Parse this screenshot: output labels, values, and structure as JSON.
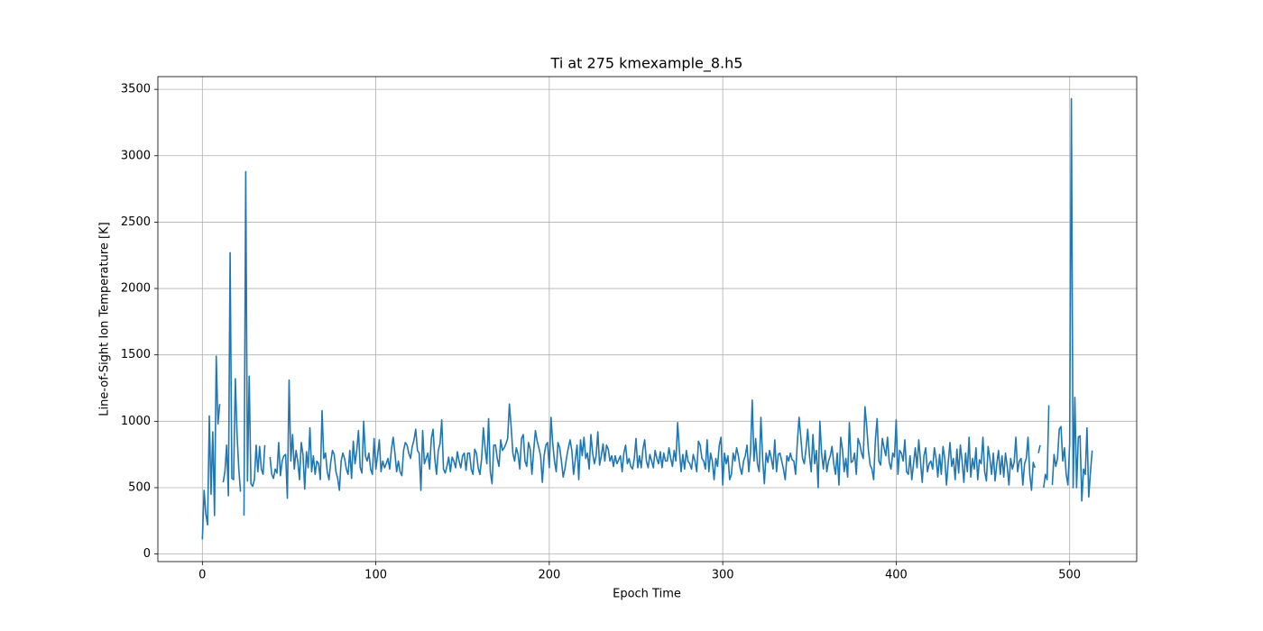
{
  "chart_data": {
    "type": "line",
    "title": "Ti at 275 kmexample_8.h5",
    "x_label": "Epoch Time",
    "y_label": "Line-of-Sight Ion Temperature [K]",
    "color": "#1f77b4",
    "grid": true,
    "xlim": [
      -25.65,
      538.65
    ],
    "ylim": [
      -57,
      3596
    ],
    "xticks": [
      0,
      100,
      200,
      300,
      400,
      500
    ],
    "yticks": [
      0,
      500,
      1000,
      1500,
      2000,
      2500,
      3000,
      3500
    ],
    "x": [
      0,
      1,
      2,
      3,
      4,
      5,
      6,
      7,
      8,
      9,
      10,
      11,
      12,
      13,
      14,
      15,
      16,
      17,
      18,
      19,
      20,
      21,
      22,
      23,
      24,
      25,
      26,
      27,
      28,
      29,
      30,
      31,
      32,
      33,
      34,
      35,
      36,
      37,
      38,
      39,
      40,
      41,
      42,
      43,
      44,
      45,
      46,
      47,
      48,
      49,
      50,
      51,
      52,
      53,
      54,
      55,
      56,
      57,
      58,
      59,
      60,
      61,
      62,
      63,
      64,
      65,
      66,
      67,
      68,
      69,
      70,
      71,
      72,
      73,
      74,
      75,
      76,
      77,
      78,
      79,
      80,
      81,
      82,
      83,
      84,
      85,
      86,
      87,
      88,
      89,
      90,
      91,
      92,
      93,
      94,
      95,
      96,
      97,
      98,
      99,
      100,
      101,
      102,
      103,
      104,
      105,
      106,
      107,
      108,
      109,
      110,
      111,
      112,
      113,
      114,
      115,
      116,
      117,
      118,
      119,
      120,
      121,
      122,
      123,
      124,
      125,
      126,
      127,
      128,
      129,
      130,
      131,
      132,
      133,
      134,
      135,
      136,
      137,
      138,
      139,
      140,
      141,
      142,
      143,
      144,
      145,
      146,
      147,
      148,
      149,
      150,
      151,
      152,
      153,
      154,
      155,
      156,
      157,
      158,
      159,
      160,
      161,
      162,
      163,
      164,
      165,
      166,
      167,
      168,
      169,
      170,
      171,
      172,
      173,
      174,
      175,
      176,
      177,
      178,
      179,
      180,
      181,
      182,
      183,
      184,
      185,
      186,
      187,
      188,
      189,
      190,
      191,
      192,
      193,
      194,
      195,
      196,
      197,
      198,
      199,
      200,
      201,
      202,
      203,
      204,
      205,
      206,
      207,
      208,
      209,
      210,
      211,
      212,
      213,
      214,
      215,
      216,
      217,
      218,
      219,
      220,
      221,
      222,
      223,
      224,
      225,
      226,
      227,
      228,
      229,
      230,
      231,
      232,
      233,
      234,
      235,
      236,
      237,
      238,
      239,
      240,
      241,
      242,
      243,
      244,
      245,
      246,
      247,
      248,
      249,
      250,
      251,
      252,
      253,
      254,
      255,
      256,
      257,
      258,
      259,
      260,
      261,
      262,
      263,
      264,
      265,
      266,
      267,
      268,
      269,
      270,
      271,
      272,
      273,
      274,
      275,
      276,
      277,
      278,
      279,
      280,
      281,
      282,
      283,
      284,
      285,
      286,
      287,
      288,
      289,
      290,
      291,
      292,
      293,
      294,
      295,
      296,
      297,
      298,
      299,
      300,
      301,
      302,
      303,
      304,
      305,
      306,
      307,
      308,
      309,
      310,
      311,
      312,
      313,
      314,
      315,
      316,
      317,
      318,
      319,
      320,
      321,
      322,
      323,
      324,
      325,
      326,
      327,
      328,
      329,
      330,
      331,
      332,
      333,
      334,
      335,
      336,
      337,
      338,
      339,
      340,
      341,
      342,
      343,
      344,
      345,
      346,
      347,
      348,
      349,
      350,
      351,
      352,
      353,
      354,
      355,
      356,
      357,
      358,
      359,
      360,
      361,
      362,
      363,
      364,
      365,
      366,
      367,
      368,
      369,
      370,
      371,
      372,
      373,
      374,
      375,
      376,
      377,
      378,
      379,
      380,
      381,
      382,
      383,
      384,
      385,
      386,
      387,
      388,
      389,
      390,
      391,
      392,
      393,
      394,
      395,
      396,
      397,
      398,
      399,
      400,
      401,
      402,
      403,
      404,
      405,
      406,
      407,
      408,
      409,
      410,
      411,
      412,
      413,
      414,
      415,
      416,
      417,
      418,
      419,
      420,
      421,
      422,
      423,
      424,
      425,
      426,
      427,
      428,
      429,
      430,
      431,
      432,
      433,
      434,
      435,
      436,
      437,
      438,
      439,
      440,
      441,
      442,
      443,
      444,
      445,
      446,
      447,
      448,
      449,
      450,
      451,
      452,
      453,
      454,
      455,
      456,
      457,
      458,
      459,
      460,
      461,
      462,
      463,
      464,
      465,
      466,
      467,
      468,
      469,
      470,
      471,
      472,
      473,
      474,
      475,
      476,
      477,
      478,
      479,
      480,
      481,
      482,
      483,
      484,
      485,
      486,
      487,
      488,
      489,
      490,
      491,
      492,
      493,
      494,
      495,
      496,
      497,
      498,
      499,
      500,
      501,
      502,
      503,
      504,
      505,
      506,
      507,
      508,
      509,
      510,
      511,
      512,
      513
    ],
    "values": [
      110,
      480,
      300,
      220,
      1040,
      450,
      920,
      290,
      1490,
      980,
      1130,
      null,
      540,
      620,
      820,
      440,
      2270,
      570,
      560,
      1320,
      900,
      640,
      470,
      null,
      290,
      2880,
      550,
      1340,
      530,
      510,
      560,
      820,
      620,
      810,
      640,
      600,
      820,
      null,
      null,
      730,
      600,
      570,
      640,
      610,
      840,
      590,
      700,
      740,
      750,
      420,
      1310,
      700,
      900,
      640,
      780,
      700,
      560,
      840,
      750,
      490,
      770,
      650,
      950,
      620,
      740,
      600,
      700,
      680,
      560,
      1080,
      720,
      760,
      620,
      560,
      690,
      780,
      750,
      620,
      570,
      480,
      700,
      760,
      720,
      640,
      600,
      780,
      570,
      850,
      680,
      780,
      930,
      650,
      610,
      1000,
      740,
      700,
      760,
      640,
      600,
      870,
      640,
      740,
      860,
      620,
      700,
      650,
      680,
      720,
      640,
      790,
      880,
      760,
      620,
      700,
      620,
      590,
      780,
      840,
      820,
      760,
      720,
      810,
      860,
      940,
      780,
      760,
      480,
      930,
      680,
      720,
      760,
      640,
      870,
      940,
      720,
      600,
      780,
      830,
      1010,
      640,
      610,
      660,
      730,
      620,
      730,
      700,
      650,
      770,
      700,
      650,
      740,
      760,
      630,
      760,
      760,
      640,
      600,
      790,
      760,
      650,
      600,
      720,
      950,
      800,
      680,
      1020,
      620,
      530,
      820,
      820,
      720,
      660,
      860,
      780,
      800,
      830,
      870,
      1130,
      960,
      760,
      700,
      800,
      750,
      640,
      870,
      900,
      700,
      660,
      840,
      790,
      600,
      780,
      930,
      850,
      800,
      740,
      540,
      740,
      820,
      840,
      650,
      1030,
      830,
      700,
      620,
      840,
      800,
      700,
      580,
      640,
      730,
      800,
      860,
      780,
      600,
      710,
      820,
      560,
      860,
      740,
      880,
      720,
      760,
      640,
      900,
      760,
      680,
      740,
      920,
      670,
      740,
      830,
      700,
      820,
      790,
      700,
      740,
      660,
      740,
      680,
      710,
      740,
      620,
      760,
      820,
      680,
      720,
      660,
      640,
      720,
      870,
      650,
      740,
      650,
      790,
      860,
      700,
      650,
      750,
      700,
      650,
      780,
      720,
      680,
      770,
      650,
      760,
      700,
      700,
      800,
      720,
      660,
      780,
      700,
      990,
      780,
      620,
      750,
      640,
      780,
      700,
      680,
      640,
      750,
      700,
      620,
      850,
      820,
      720,
      700,
      640,
      860,
      620,
      760,
      700,
      560,
      720,
      660,
      820,
      880,
      520,
      760,
      680,
      740,
      560,
      600,
      760,
      700,
      800,
      740,
      650,
      600,
      700,
      740,
      820,
      620,
      760,
      1160,
      700,
      870,
      680,
      620,
      1030,
      720,
      530,
      760,
      690,
      780,
      720,
      640,
      860,
      620,
      750,
      760,
      700,
      640,
      560,
      740,
      700,
      760,
      710,
      700,
      600,
      840,
      1030,
      880,
      720,
      680,
      790,
      940,
      740,
      620,
      900,
      680,
      780,
      500,
      1000,
      760,
      640,
      780,
      620,
      700,
      740,
      810,
      680,
      600,
      760,
      520,
      880,
      790,
      620,
      720,
      580,
      990,
      690,
      700,
      760,
      600,
      870,
      830,
      760,
      720,
      1110,
      960,
      780,
      670,
      640,
      560,
      860,
      1020,
      700,
      670,
      870,
      800,
      740,
      880,
      690,
      640,
      760,
      730,
      1010,
      600,
      780,
      760,
      700,
      860,
      620,
      600,
      740,
      560,
      680,
      800,
      650,
      860,
      700,
      540,
      740,
      800,
      620,
      680,
      700,
      640,
      800,
      720,
      580,
      750,
      600,
      810,
      720,
      520,
      690,
      840,
      660,
      720,
      560,
      790,
      610,
      820,
      700,
      540,
      760,
      620,
      880,
      580,
      720,
      640,
      800,
      560,
      710,
      680,
      880,
      620,
      550,
      810,
      720,
      600,
      760,
      550,
      680,
      780,
      600,
      740,
      580,
      760,
      660,
      520,
      720,
      640,
      690,
      880,
      620,
      700,
      720,
      520,
      680,
      720,
      880,
      600,
      480,
      690,
      650,
      null,
      760,
      820,
      null,
      500,
      600,
      560,
      1120,
      null,
      520,
      750,
      660,
      720,
      940,
      960,
      700,
      800,
      600,
      520,
      830,
      3430,
      500,
      1180,
      500,
      880,
      890,
      400,
      640,
      600,
      950,
      430,
      620,
      780
    ]
  }
}
